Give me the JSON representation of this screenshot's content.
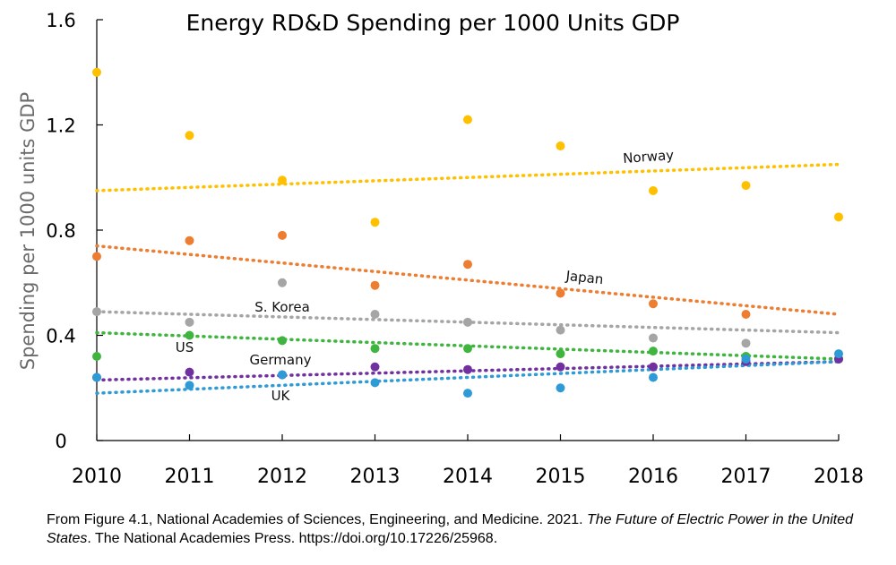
{
  "chart_data": {
    "type": "scatter",
    "title": "Energy RD&D Spending per 1000 Units GDP",
    "xlabel": "",
    "ylabel": "Spending per 1000 units GDP",
    "x": [
      "2010",
      "2011",
      "2012",
      "2013",
      "2014",
      "2015",
      "2016",
      "2017",
      "2018"
    ],
    "ylim": [
      0,
      1.6
    ],
    "yticks": [
      "0",
      "0.4",
      "0.8",
      "1.2",
      "1.6"
    ],
    "grid": false,
    "legend": "none",
    "series": [
      {
        "name": "Norway",
        "color": "#ffc000",
        "values": [
          1.4,
          1.16,
          0.99,
          0.83,
          1.22,
          1.12,
          0.95,
          0.97,
          0.85
        ],
        "trend": [
          0.95,
          1.05
        ]
      },
      {
        "name": "Japan",
        "color": "#ed7d31",
        "values": [
          0.7,
          0.76,
          0.78,
          0.59,
          0.67,
          0.56,
          0.52,
          0.48,
          null
        ],
        "trend": [
          0.74,
          0.48
        ]
      },
      {
        "name": "S. Korea",
        "color": "#a5a5a5",
        "values": [
          0.49,
          0.45,
          0.6,
          0.48,
          0.45,
          0.42,
          0.39,
          0.37,
          null
        ],
        "trend": [
          0.49,
          0.41
        ]
      },
      {
        "name": "US",
        "color": "#3fb53f",
        "values": [
          0.32,
          0.4,
          0.38,
          0.35,
          0.35,
          0.33,
          0.34,
          0.32,
          0.31
        ],
        "trend": [
          0.41,
          0.31
        ]
      },
      {
        "name": "Germany",
        "color": "#7030a0",
        "values": [
          0.24,
          0.26,
          0.25,
          0.28,
          0.27,
          0.28,
          0.28,
          0.3,
          0.31
        ],
        "trend": [
          0.23,
          0.3
        ]
      },
      {
        "name": "UK",
        "color": "#2e9bd6",
        "values": [
          0.24,
          0.21,
          0.25,
          0.22,
          0.18,
          0.2,
          0.24,
          0.31,
          0.33
        ],
        "trend": [
          0.18,
          0.3
        ]
      }
    ]
  },
  "caption": {
    "prefix": "From Figure 4.1, National Academies of Sciences, Engineering, and Medicine. 2021. ",
    "book_title": "The Future of Electric Power in the United States",
    "suffix": ". The National Academies Press. https://doi.org/10.17226/25968."
  }
}
